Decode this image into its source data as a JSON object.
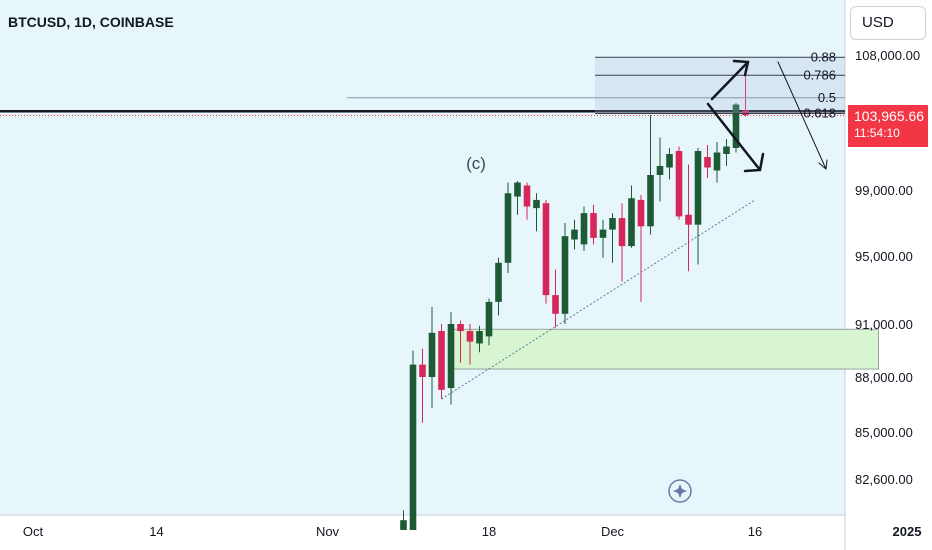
{
  "header": {
    "symbol_title": "BTCUSD, 1D, COINBASE",
    "currency_label": "USD"
  },
  "last_price": {
    "value": "103,965.66",
    "countdown": "11:54:10",
    "color": "#f23645"
  },
  "colors": {
    "background": "#e6f6fb",
    "up_candle": "#1e5a35",
    "down_candle": "#d6265a",
    "demand_zone": "#d6f5d0"
  },
  "icons": [
    "compass-star-icon"
  ],
  "chart_data": {
    "type": "candlestick",
    "title": "BTCUSD, 1D, COINBASE",
    "y_axis": {
      "ticks": [
        "108,000.00",
        "99,000.00",
        "95,000.00",
        "91,000.00",
        "88,000.00",
        "85,000.00",
        "82,600.00"
      ],
      "tick_values": [
        108000,
        99000,
        95000,
        91000,
        88000,
        85000,
        82600
      ],
      "range": [
        80000,
        111000
      ]
    },
    "x_axis": {
      "labels": [
        "Oct",
        "14",
        "Nov",
        "18",
        "Dec",
        "16",
        "2025"
      ],
      "label_days": [
        0,
        13,
        31,
        48,
        61,
        76,
        92
      ]
    },
    "candles": [
      {
        "day": 39,
        "o": 79500,
        "h": 81000,
        "l": 79000,
        "c": 80500
      },
      {
        "day": 40,
        "o": 80000,
        "h": 89500,
        "l": 79500,
        "c": 88700
      },
      {
        "day": 41,
        "o": 88700,
        "h": 89600,
        "l": 85500,
        "c": 88000
      },
      {
        "day": 42,
        "o": 88000,
        "h": 92000,
        "l": 86300,
        "c": 90500
      },
      {
        "day": 43,
        "o": 90600,
        "h": 91000,
        "l": 86800,
        "c": 87300
      },
      {
        "day": 44,
        "o": 87400,
        "h": 91700,
        "l": 86500,
        "c": 91000
      },
      {
        "day": 45,
        "o": 91000,
        "h": 91200,
        "l": 88800,
        "c": 90600
      },
      {
        "day": 46,
        "o": 90600,
        "h": 91000,
        "l": 88700,
        "c": 90000
      },
      {
        "day": 47,
        "o": 89900,
        "h": 90900,
        "l": 89400,
        "c": 90600
      },
      {
        "day": 48,
        "o": 90300,
        "h": 92500,
        "l": 89800,
        "c": 92300
      },
      {
        "day": 49,
        "o": 92300,
        "h": 94900,
        "l": 91500,
        "c": 94600
      },
      {
        "day": 50,
        "o": 94600,
        "h": 99500,
        "l": 94000,
        "c": 98800
      },
      {
        "day": 51,
        "o": 98600,
        "h": 99600,
        "l": 97500,
        "c": 99500
      },
      {
        "day": 52,
        "o": 99300,
        "h": 99500,
        "l": 97200,
        "c": 98000
      },
      {
        "day": 53,
        "o": 97900,
        "h": 98800,
        "l": 96500,
        "c": 98400
      },
      {
        "day": 54,
        "o": 98200,
        "h": 98400,
        "l": 92200,
        "c": 92700
      },
      {
        "day": 55,
        "o": 92700,
        "h": 94200,
        "l": 90800,
        "c": 91600
      },
      {
        "day": 56,
        "o": 91600,
        "h": 97000,
        "l": 91000,
        "c": 96200
      },
      {
        "day": 57,
        "o": 96000,
        "h": 97200,
        "l": 95400,
        "c": 96600
      },
      {
        "day": 58,
        "o": 95700,
        "h": 98000,
        "l": 95300,
        "c": 97600
      },
      {
        "day": 59,
        "o": 97600,
        "h": 98100,
        "l": 95700,
        "c": 96100
      },
      {
        "day": 60,
        "o": 96100,
        "h": 97200,
        "l": 94900,
        "c": 96600
      },
      {
        "day": 61,
        "o": 96600,
        "h": 97600,
        "l": 94600,
        "c": 97300
      },
      {
        "day": 62,
        "o": 97300,
        "h": 98200,
        "l": 93500,
        "c": 95600
      },
      {
        "day": 63,
        "o": 95600,
        "h": 99300,
        "l": 95500,
        "c": 98500
      },
      {
        "day": 64,
        "o": 98400,
        "h": 98700,
        "l": 92300,
        "c": 96800
      },
      {
        "day": 65,
        "o": 96800,
        "h": 104000,
        "l": 96300,
        "c": 100000
      },
      {
        "day": 66,
        "o": 100000,
        "h": 102500,
        "l": 98300,
        "c": 100600
      },
      {
        "day": 67,
        "o": 100500,
        "h": 101800,
        "l": 99700,
        "c": 101400
      },
      {
        "day": 68,
        "o": 101600,
        "h": 101900,
        "l": 97200,
        "c": 97400
      },
      {
        "day": 69,
        "o": 97500,
        "h": 100700,
        "l": 94100,
        "c": 96900
      },
      {
        "day": 70,
        "o": 96900,
        "h": 101800,
        "l": 94500,
        "c": 101600
      },
      {
        "day": 71,
        "o": 101200,
        "h": 102000,
        "l": 99800,
        "c": 100500
      },
      {
        "day": 72,
        "o": 100300,
        "h": 102200,
        "l": 99500,
        "c": 101500
      },
      {
        "day": 73,
        "o": 101400,
        "h": 102400,
        "l": 100600,
        "c": 101900
      },
      {
        "day": 74,
        "o": 101800,
        "h": 104800,
        "l": 101500,
        "c": 104700
      },
      {
        "day": 75,
        "o": 104300,
        "h": 107000,
        "l": 103900,
        "c": 104000
      }
    ],
    "fib_levels": [
      {
        "label": "0.88",
        "value": 107850
      },
      {
        "label": "0.786",
        "value": 106650
      },
      {
        "label": "0.5",
        "value": 105150
      },
      {
        "label": "0.618",
        "value": 104100
      }
    ],
    "horizontal_line": 104250,
    "demand_zone": {
      "day_start": 44,
      "day_end": 89,
      "low": 88450,
      "high": 90700
    },
    "trendline": {
      "from": {
        "day": 43,
        "price": 86800
      },
      "to": {
        "day": 76,
        "price": 98400
      }
    },
    "wave_label": "(c)"
  }
}
